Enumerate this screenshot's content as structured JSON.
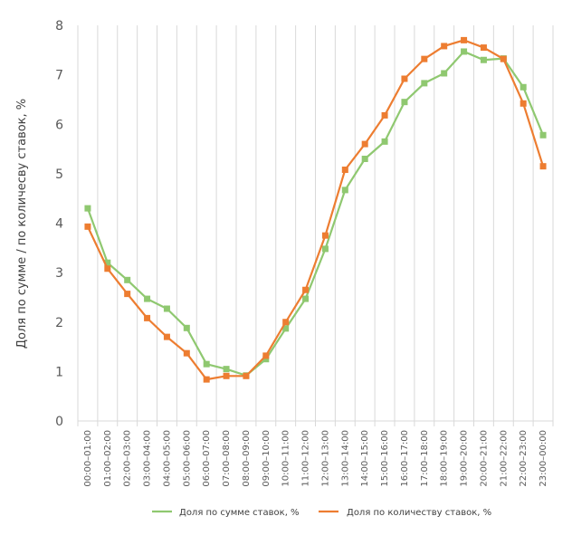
{
  "chart_data": {
    "type": "line",
    "ylabel": "Доля по сумме / по количесву ставок, %",
    "xlabel": "",
    "ylim": [
      0,
      8
    ],
    "yticks": [
      0,
      1,
      2,
      3,
      4,
      5,
      6,
      7,
      8
    ],
    "grid": "vertical-category-lines",
    "legend_position": "bottom",
    "categories": [
      "00:00–01:00",
      "01:00–02:00",
      "02:00–03:00",
      "03:00–04:00",
      "04:00–05:00",
      "05:00–06:00",
      "06:00–07:00",
      "07:00–08:00",
      "08:00–09:00",
      "09:00–10:00",
      "10:00–11:00",
      "11:00–12:00",
      "12:00–13:00",
      "13:00–14:00",
      "14:00–15:00",
      "15:00–16:00",
      "16:00–17:00",
      "17:00–18:00",
      "18:00–19:00",
      "19:00–20:00",
      "20:00–21:00",
      "21:00–22:00",
      "22:00–23:00",
      "23:00–00:00"
    ],
    "series": [
      {
        "name": "Доля по сумме ставок, %",
        "color": "#8fc870",
        "values": [
          4.3,
          3.2,
          2.85,
          2.47,
          2.27,
          1.88,
          1.15,
          1.05,
          0.92,
          1.25,
          1.87,
          2.47,
          3.48,
          4.67,
          5.3,
          5.65,
          6.45,
          6.83,
          7.03,
          7.47,
          7.3,
          7.33,
          6.75,
          5.78
        ]
      },
      {
        "name": "Доля по количеству ставок, %",
        "color": "#ed7d31",
        "values": [
          3.93,
          3.08,
          2.57,
          2.08,
          1.7,
          1.37,
          0.84,
          0.91,
          0.91,
          1.32,
          2.0,
          2.65,
          3.75,
          5.08,
          5.6,
          6.18,
          6.92,
          7.32,
          7.58,
          7.7,
          7.55,
          7.32,
          6.42,
          5.15
        ]
      }
    ]
  }
}
